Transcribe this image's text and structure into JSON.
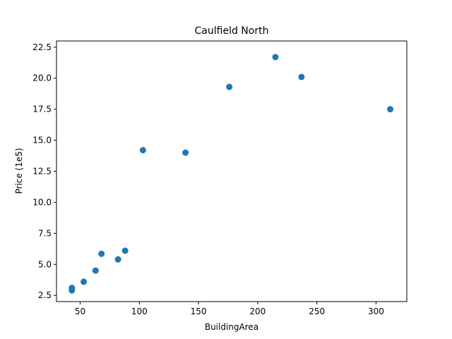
{
  "chart_data": {
    "type": "scatter",
    "title": "Caulfield North",
    "xlabel": "BuildingArea",
    "ylabel": "Price (1e5)",
    "xlim": [
      30,
      326
    ],
    "ylim": [
      2.0,
      23.0
    ],
    "xticks": [
      50,
      100,
      150,
      200,
      250,
      300
    ],
    "yticks": [
      2.5,
      5.0,
      7.5,
      10.0,
      12.5,
      15.0,
      17.5,
      20.0,
      22.5
    ],
    "xtick_labels": [
      "50",
      "100",
      "150",
      "200",
      "250",
      "300"
    ],
    "ytick_labels": [
      "2.5",
      "5.0",
      "7.5",
      "10.0",
      "12.5",
      "15.0",
      "17.5",
      "20.0",
      "22.5"
    ],
    "grid": false,
    "marker_color": "#1f77b4",
    "points": [
      {
        "x": 43,
        "y": 2.9
      },
      {
        "x": 43,
        "y": 3.1
      },
      {
        "x": 53,
        "y": 3.6
      },
      {
        "x": 63,
        "y": 4.5
      },
      {
        "x": 68,
        "y": 5.85
      },
      {
        "x": 82,
        "y": 5.4
      },
      {
        "x": 88,
        "y": 6.1
      },
      {
        "x": 103,
        "y": 14.2
      },
      {
        "x": 139,
        "y": 14.0
      },
      {
        "x": 176,
        "y": 19.3
      },
      {
        "x": 215,
        "y": 21.7
      },
      {
        "x": 237,
        "y": 20.1
      },
      {
        "x": 312,
        "y": 17.5
      }
    ]
  }
}
